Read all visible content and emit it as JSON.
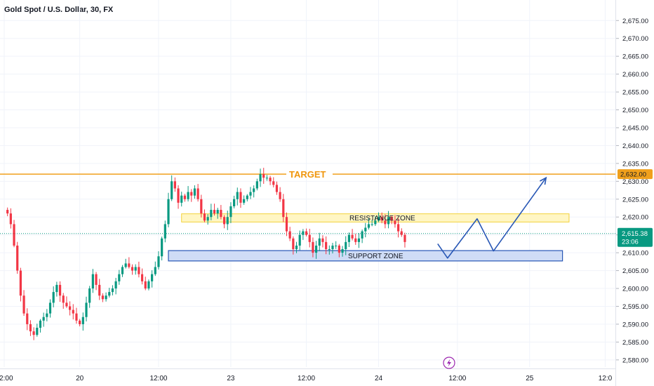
{
  "header": {
    "title": "Gold Spot / U.S. Dollar, 30, FX"
  },
  "colors": {
    "up": "#089981",
    "down": "#f23645",
    "target_line": "#f0a01c",
    "resistance_fill": "#fff6c4",
    "resistance_border": "#f3d23a",
    "support_fill": "#cfdcf6",
    "support_border": "#2857b5",
    "projection": "#2857b5",
    "price_badge": "#089981",
    "lightning": "#9c27b0"
  },
  "annotations": {
    "target_label": "TARGET",
    "resistance_label": "RESISTANCE ZONE",
    "support_label": "SUPPORT ZONE"
  },
  "price_scale": {
    "target_price_label": "2,632.00",
    "last_price_label": "2,615.38",
    "countdown_label": "23:06"
  },
  "icons": {
    "lightning": "lightning-icon"
  },
  "chart_data": {
    "type": "candlestick",
    "title": "Gold Spot / U.S. Dollar, 30, FX",
    "ylim": [
      2578,
      2678
    ],
    "y_ticks": [
      "2,580.00",
      "2,585.00",
      "2,590.00",
      "2,595.00",
      "2,600.00",
      "2,605.00",
      "2,610.00",
      "2,615.00",
      "2,620.00",
      "2,625.00",
      "2,630.00",
      "2,635.00",
      "2,640.00",
      "2,645.00",
      "2,650.00",
      "2,655.00",
      "2,660.00",
      "2,665.00",
      "2,670.00",
      "2,675.00"
    ],
    "y_tick_values": [
      2580,
      2585,
      2590,
      2595,
      2600,
      2605,
      2610,
      2615,
      2620,
      2625,
      2630,
      2635,
      2640,
      2645,
      2650,
      2655,
      2660,
      2665,
      2670,
      2675
    ],
    "x_ticks": [
      {
        "label": "12:00",
        "bar": -1
      },
      {
        "label": "20",
        "bar": 22
      },
      {
        "label": "12:00",
        "bar": 46
      },
      {
        "label": "23",
        "bar": 68
      },
      {
        "label": "12:00",
        "bar": 91
      },
      {
        "label": "24",
        "bar": 113
      },
      {
        "label": "12:00",
        "bar": 137
      },
      {
        "label": "25",
        "bar": 159
      },
      {
        "label": "12:0",
        "bar": 182
      }
    ],
    "bar_count_visible_range": [
      -1,
      184
    ],
    "closes": [
      2621,
      2618,
      2612,
      2605,
      2598,
      2593,
      2590,
      2588,
      2587,
      2589,
      2591,
      2592,
      2593,
      2596,
      2599,
      2601,
      2598,
      2596,
      2595,
      2594,
      2593,
      2591,
      2590,
      2592,
      2596,
      2600,
      2604,
      2601,
      2598,
      2597,
      2598,
      2599,
      2600,
      2602,
      2604,
      2606,
      2607,
      2606,
      2605,
      2606,
      2604,
      2602,
      2600,
      2602,
      2604,
      2606,
      2609,
      2614,
      2618,
      2625,
      2630,
      2628,
      2624,
      2626,
      2625,
      2627,
      2626,
      2628,
      2625,
      2621,
      2619,
      2620,
      2622,
      2621,
      2622,
      2620,
      2618,
      2620,
      2623,
      2625,
      2627,
      2624,
      2625,
      2626,
      2627,
      2628,
      2630,
      2632,
      2631,
      2631,
      2630,
      2629,
      2627,
      2625,
      2620,
      2616,
      2614,
      2611,
      2612,
      2615,
      2616,
      2615,
      2613,
      2610,
      2612,
      2614,
      2613,
      2611,
      2611,
      2612,
      2612,
      2610,
      2611,
      2613,
      2615,
      2614,
      2613,
      2614,
      2616,
      2617,
      2618,
      2618,
      2619,
      2620,
      2619,
      2618,
      2620,
      2619,
      2618,
      2616,
      2615,
      2613
    ],
    "projection_path": [
      {
        "bar": 131,
        "price": 2612.5
      },
      {
        "bar": 134,
        "price": 2608.5
      },
      {
        "bar": 143,
        "price": 2619.5
      },
      {
        "bar": 148,
        "price": 2610.5
      },
      {
        "bar": 164,
        "price": 2631.0
      }
    ],
    "target_price": 2632.0,
    "last_price": 2615.38,
    "resistance_zone": {
      "from_bar": 53,
      "to_bar": 171,
      "low": 2618.6,
      "high": 2620.9
    },
    "support_zone": {
      "from_bar": 49,
      "to_bar": 169,
      "low": 2607.7,
      "high": 2610.6
    }
  }
}
